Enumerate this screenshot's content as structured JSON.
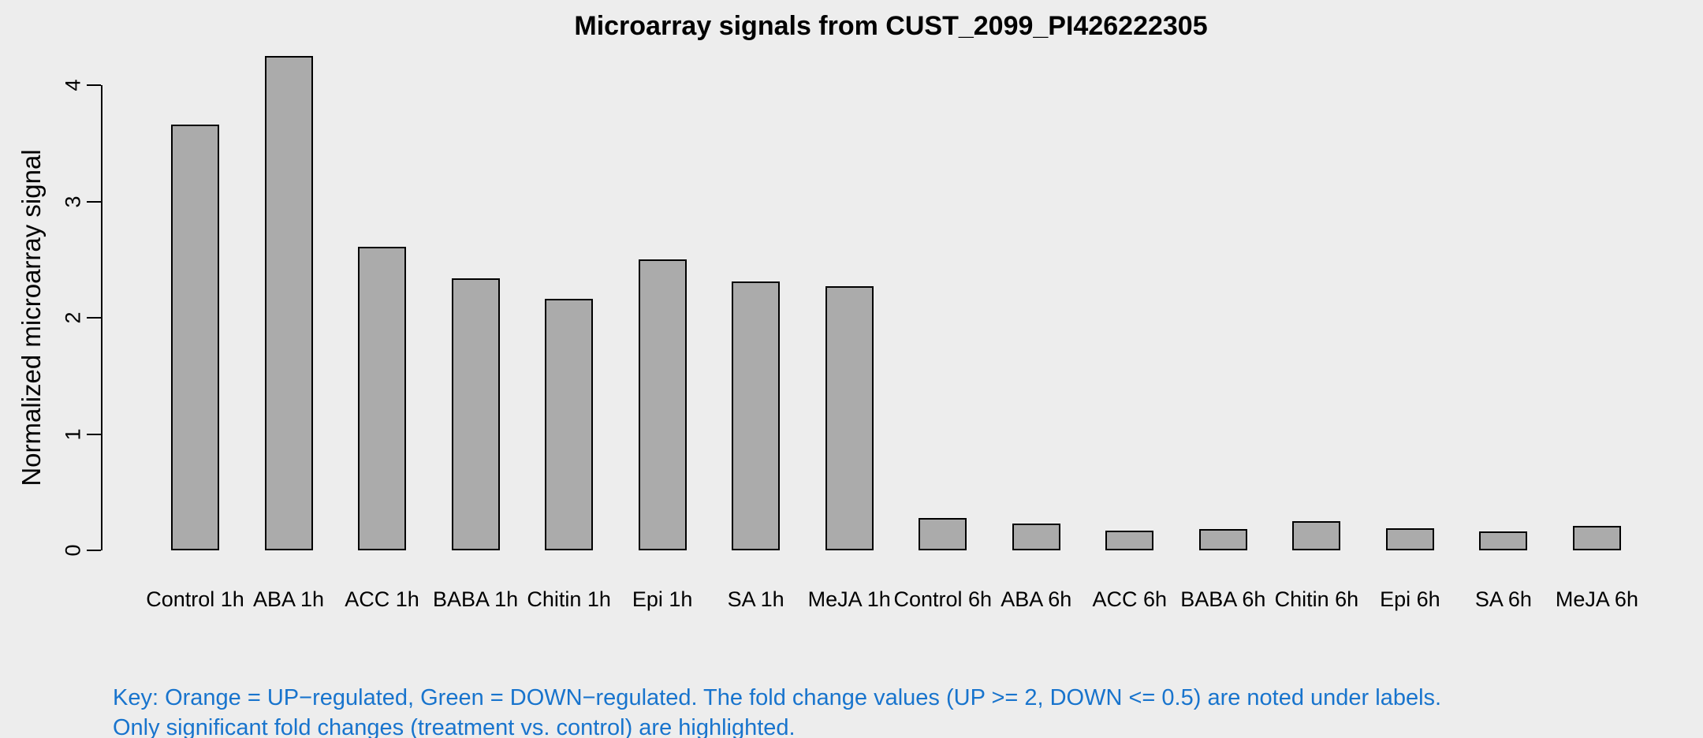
{
  "figure": {
    "title": "Microarray signals from CUST_2099_PI426222305",
    "y_axis_label": "Normalized microarray signal",
    "key": {
      "line1": "Key: Orange = UP−regulated, Green = DOWN−regulated. The fold change values (UP >= 2, DOWN <= 0.5) are noted under labels.",
      "line2": "Only significant fold changes (treatment vs. control) are highlighted."
    }
  },
  "colors": {
    "background": "#EDEDED",
    "bar_fill": "#ABABAB",
    "bar_border": "#000000",
    "axis": "#000000",
    "title_text": "#000000",
    "key_text": "#1874CD"
  },
  "chart_data": {
    "type": "bar",
    "title": "Microarray signals from CUST_2099_PI426222305",
    "xlabel": "",
    "ylabel": "Normalized microarray signal",
    "categories": [
      "Control 1h",
      "ABA 1h",
      "ACC 1h",
      "BABA 1h",
      "Chitin 1h",
      "Epi 1h",
      "SA 1h",
      "MeJA 1h",
      "Control 6h",
      "ABA 6h",
      "ACC 6h",
      "BABA 6h",
      "Chitin 6h",
      "Epi 6h",
      "SA 6h",
      "MeJA 6h"
    ],
    "values": [
      3.66,
      4.25,
      2.61,
      2.34,
      2.16,
      2.5,
      2.31,
      2.27,
      0.28,
      0.23,
      0.17,
      0.18,
      0.25,
      0.19,
      0.16,
      0.21
    ],
    "yticks": [
      0,
      1,
      2,
      3,
      4
    ],
    "ylim": [
      0,
      4.3
    ],
    "grid": false,
    "legend_position": "none",
    "annotations": [
      "Key: Orange = UP−regulated, Green = DOWN−regulated. The fold change values (UP >= 2, DOWN <= 0.5) are noted under labels.",
      "Only significant fold changes (treatment vs. control) are highlighted."
    ]
  }
}
